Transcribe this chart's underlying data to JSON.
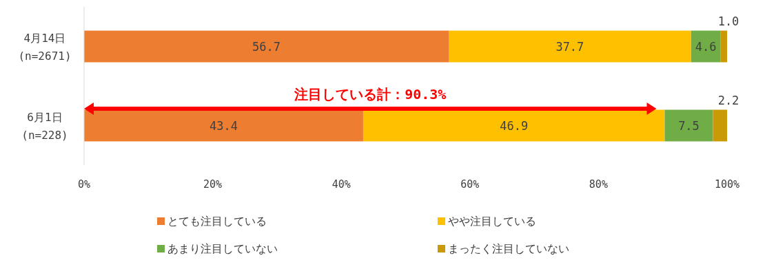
{
  "chart_data": {
    "type": "bar",
    "orientation": "horizontal",
    "stacked": true,
    "categories": [
      "4月14日\n(n=2671)",
      "6月1日\n(n=228)"
    ],
    "series": [
      {
        "name": "とても注目している",
        "color": "#ed7d31",
        "values": [
          56.7,
          43.4
        ],
        "value_labels": [
          "56.7",
          "43.4"
        ]
      },
      {
        "name": "やや注目している",
        "color": "#ffc000",
        "values": [
          37.7,
          46.9
        ],
        "value_labels": [
          "37.7",
          "46.9"
        ]
      },
      {
        "name": "あまり注目していない",
        "color": "#70ad47",
        "values": [
          4.6,
          7.5
        ],
        "value_labels": [
          "4.6",
          "7.5"
        ]
      },
      {
        "name": "まったく注目していない",
        "color": "#c99a06",
        "values": [
          1.0,
          2.2
        ],
        "value_labels": [
          "1.0",
          "2.2"
        ]
      }
    ],
    "xlim": [
      0,
      100
    ],
    "xticks": [
      {
        "value": 0,
        "label": "0%"
      },
      {
        "value": 20,
        "label": "20%"
      },
      {
        "value": 40,
        "label": "40%"
      },
      {
        "value": 60,
        "label": "60%"
      },
      {
        "value": 80,
        "label": "80%"
      },
      {
        "value": 100,
        "label": "100%"
      }
    ],
    "annotations": [
      "注目している計：90.3%"
    ],
    "legend": "bottom",
    "grid": false
  }
}
